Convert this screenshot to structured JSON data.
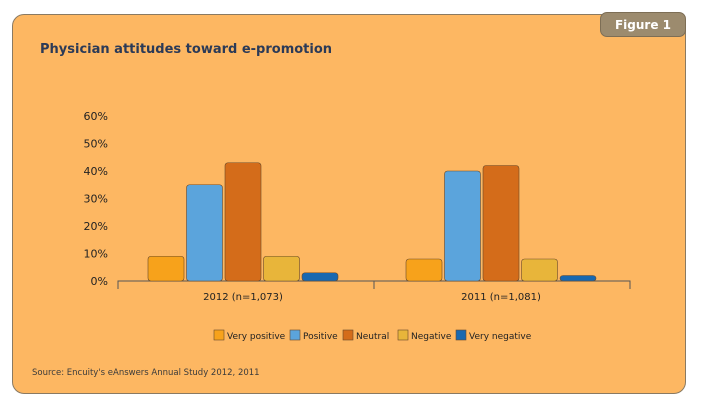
{
  "figure_label": "Figure 1",
  "source_note": "Source: Encuity's eAnswers Annual Study 2012, 2011",
  "chart_data": {
    "type": "bar",
    "title": "Physician attitudes toward e-promotion",
    "xlabel": "",
    "ylabel": "",
    "ylim": [
      0,
      60
    ],
    "yticks": [
      "0%",
      "10%",
      "20%",
      "30%",
      "40%",
      "50%",
      "60%"
    ],
    "categories": [
      "2012 (n=1,073)",
      "2011 (n=1,081)"
    ],
    "series": [
      {
        "name": "Very positive",
        "color": "#f7a21b",
        "values": [
          9,
          8
        ]
      },
      {
        "name": "Positive",
        "color": "#5ba4dc",
        "values": [
          35,
          40
        ]
      },
      {
        "name": "Neutral",
        "color": "#d46c1a",
        "values": [
          43,
          42
        ]
      },
      {
        "name": "Negative",
        "color": "#e8b53a",
        "values": [
          9,
          8
        ]
      },
      {
        "name": "Very negative",
        "color": "#1868b0",
        "values": [
          3,
          2
        ]
      }
    ],
    "legend_position": "bottom",
    "grid": false
  }
}
